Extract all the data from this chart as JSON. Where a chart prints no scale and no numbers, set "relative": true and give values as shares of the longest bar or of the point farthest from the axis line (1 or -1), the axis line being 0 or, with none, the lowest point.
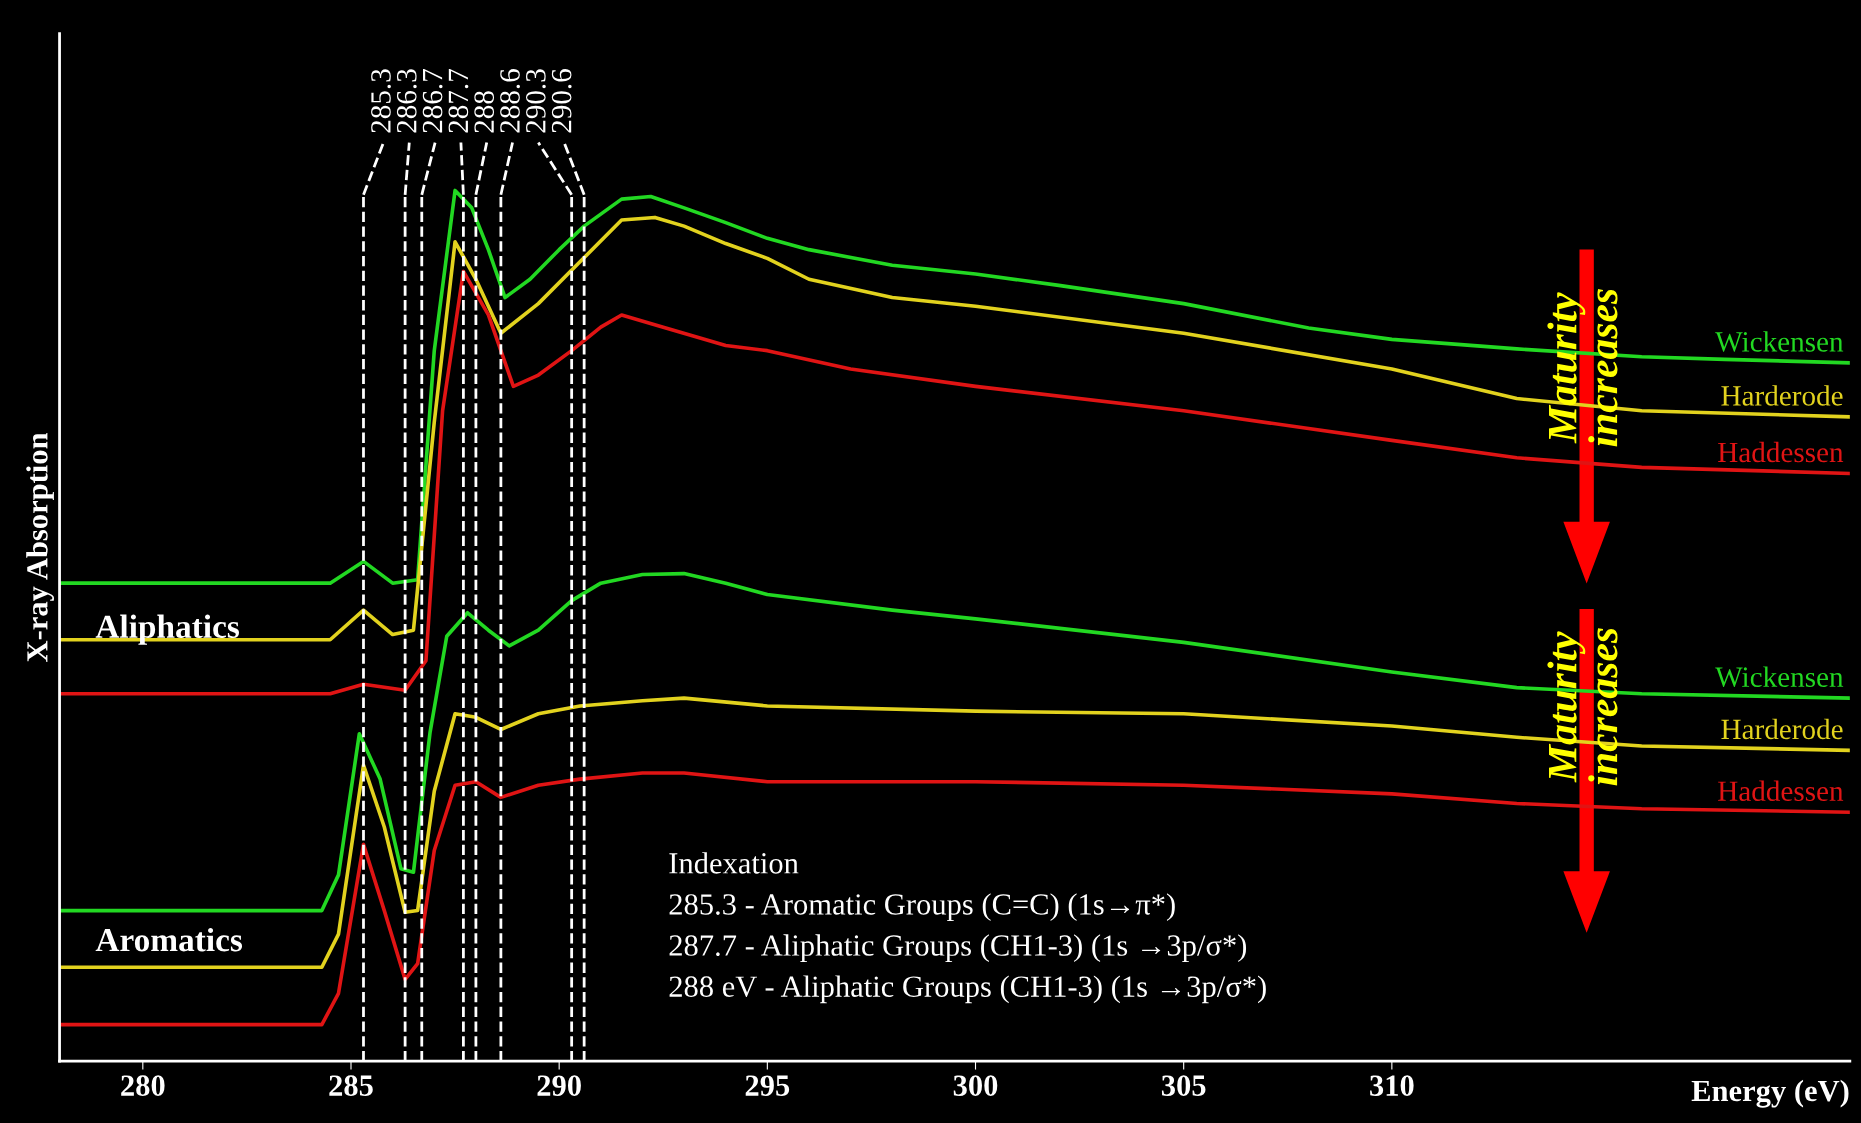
{
  "chart_data": {
    "type": "line",
    "relative": true,
    "xlabel": "Energy (eV)",
    "ylabel": "X-ray Absorption",
    "xlim": [
      278,
      321
    ],
    "xticks": [
      280,
      285,
      290,
      295,
      300,
      305,
      310
    ],
    "tick_labels": "x",
    "grid": false,
    "marker": "none",
    "line_style": "solid",
    "series": [
      {
        "name": "Wickensen",
        "color": "#22d822",
        "x": [
          278,
          284.5,
          285.3,
          286,
          286.6,
          287,
          287.5,
          287.9,
          288.3,
          288.7,
          289.3,
          290,
          290.6,
          291.5,
          292.2,
          293,
          294,
          295,
          296,
          298,
          300,
          302,
          305,
          308,
          310,
          313,
          316,
          318,
          321
        ],
        "values": [
          0.549,
          0.549,
          0.574,
          0.549,
          0.553,
          0.816,
          1.0,
          0.98,
          0.932,
          0.877,
          0.898,
          0.932,
          0.959,
          0.99,
          0.993,
          0.98,
          0.963,
          0.945,
          0.932,
          0.914,
          0.904,
          0.891,
          0.87,
          0.842,
          0.829,
          0.818,
          0.809,
          0.806,
          0.802
        ]
      },
      {
        "name": "Harderode",
        "color": "#e2d21e",
        "x": [
          278,
          284.5,
          285.3,
          286,
          286.5,
          287,
          287.5,
          288,
          288.6,
          289.5,
          290.5,
          291.5,
          292.3,
          293,
          294,
          295,
          296,
          298,
          300,
          305,
          310,
          313,
          316,
          321
        ],
        "values": [
          0.484,
          0.484,
          0.518,
          0.49,
          0.495,
          0.734,
          0.941,
          0.898,
          0.836,
          0.87,
          0.918,
          0.966,
          0.969,
          0.959,
          0.939,
          0.922,
          0.898,
          0.877,
          0.867,
          0.836,
          0.795,
          0.761,
          0.747,
          0.74
        ]
      },
      {
        "name": "Haddessen",
        "color": "#e01414",
        "x": [
          278,
          284.5,
          285.3,
          286.3,
          286.8,
          287.2,
          287.7,
          288.3,
          288.9,
          289.5,
          290.3,
          291,
          291.5,
          292.5,
          294,
          295,
          297,
          300,
          305,
          310,
          313,
          316,
          321
        ],
        "values": [
          0.422,
          0.422,
          0.433,
          0.426,
          0.46,
          0.747,
          0.907,
          0.857,
          0.775,
          0.788,
          0.816,
          0.843,
          0.857,
          0.843,
          0.822,
          0.816,
          0.795,
          0.775,
          0.747,
          0.713,
          0.693,
          0.682,
          0.675
        ]
      },
      {
        "name": "Wickensen",
        "color": "#22d822",
        "x": [
          278,
          284.3,
          284.7,
          285.2,
          285.7,
          286.2,
          286.5,
          286.9,
          287.3,
          287.8,
          288.3,
          288.8,
          289.5,
          290.3,
          291,
          292,
          293,
          294,
          295,
          298,
          300,
          305,
          310,
          313,
          316,
          321
        ],
        "values": [
          0.173,
          0.173,
          0.214,
          0.376,
          0.324,
          0.221,
          0.217,
          0.378,
          0.488,
          0.515,
          0.495,
          0.477,
          0.495,
          0.529,
          0.549,
          0.559,
          0.56,
          0.549,
          0.536,
          0.518,
          0.508,
          0.481,
          0.447,
          0.429,
          0.422,
          0.417
        ]
      },
      {
        "name": "Harderode",
        "color": "#e2d21e",
        "x": [
          278,
          284.3,
          284.7,
          285.3,
          285.8,
          286.3,
          286.6,
          287,
          287.5,
          288,
          288.6,
          289.5,
          290.5,
          292,
          293,
          295,
          300,
          305,
          310,
          313,
          316,
          321
        ],
        "values": [
          0.108,
          0.108,
          0.146,
          0.34,
          0.269,
          0.171,
          0.173,
          0.31,
          0.399,
          0.395,
          0.381,
          0.399,
          0.408,
          0.414,
          0.417,
          0.408,
          0.402,
          0.399,
          0.385,
          0.372,
          0.362,
          0.357
        ]
      },
      {
        "name": "Haddessen",
        "color": "#e01414",
        "x": [
          278,
          284.3,
          284.7,
          285.3,
          285.8,
          286.3,
          286.6,
          287,
          287.5,
          288,
          288.6,
          289.5,
          290.5,
          292,
          293,
          295,
          300,
          305,
          310,
          313,
          316,
          321
        ],
        "values": [
          0.042,
          0.042,
          0.078,
          0.249,
          0.173,
          0.094,
          0.112,
          0.242,
          0.317,
          0.321,
          0.303,
          0.317,
          0.324,
          0.331,
          0.331,
          0.321,
          0.321,
          0.317,
          0.307,
          0.296,
          0.29,
          0.286
        ]
      }
    ],
    "ref_lines": [
      {
        "axis": "x",
        "value": 285.3,
        "label": "285.3",
        "color": "#ffffff",
        "line_style": "dashed"
      },
      {
        "axis": "x",
        "value": 286.3,
        "label": "286.3",
        "color": "#ffffff",
        "line_style": "dashed"
      },
      {
        "axis": "x",
        "value": 286.7,
        "label": "286.7",
        "color": "#ffffff",
        "line_style": "dashed"
      },
      {
        "axis": "x",
        "value": 287.7,
        "label": "287.7",
        "color": "#ffffff",
        "line_style": "dashed"
      },
      {
        "axis": "x",
        "value": 288,
        "label": "288",
        "color": "#ffffff",
        "line_style": "dashed"
      },
      {
        "axis": "x",
        "value": 288.6,
        "label": "288.6",
        "color": "#ffffff",
        "line_style": "dashed"
      },
      {
        "axis": "x",
        "value": 290.3,
        "label": "290.3",
        "color": "#ffffff",
        "line_style": "dashed"
      },
      {
        "axis": "x",
        "value": 290.6,
        "label": "290.6",
        "color": "#ffffff",
        "line_style": "dashed"
      }
    ],
    "annotations": [
      "Aliphatics",
      "Aromatics",
      "Indexation",
      "285.3 - Aromatic Groups (C=C) (1s→π*)",
      "287.7 - Aliphatic Groups (CH1-3) (1s →3p/σ*)",
      "288 eV - Aliphatic Groups (CH1-3) (1s →3p/σ*)",
      "Maturity increases",
      "Maturity increases"
    ]
  }
}
